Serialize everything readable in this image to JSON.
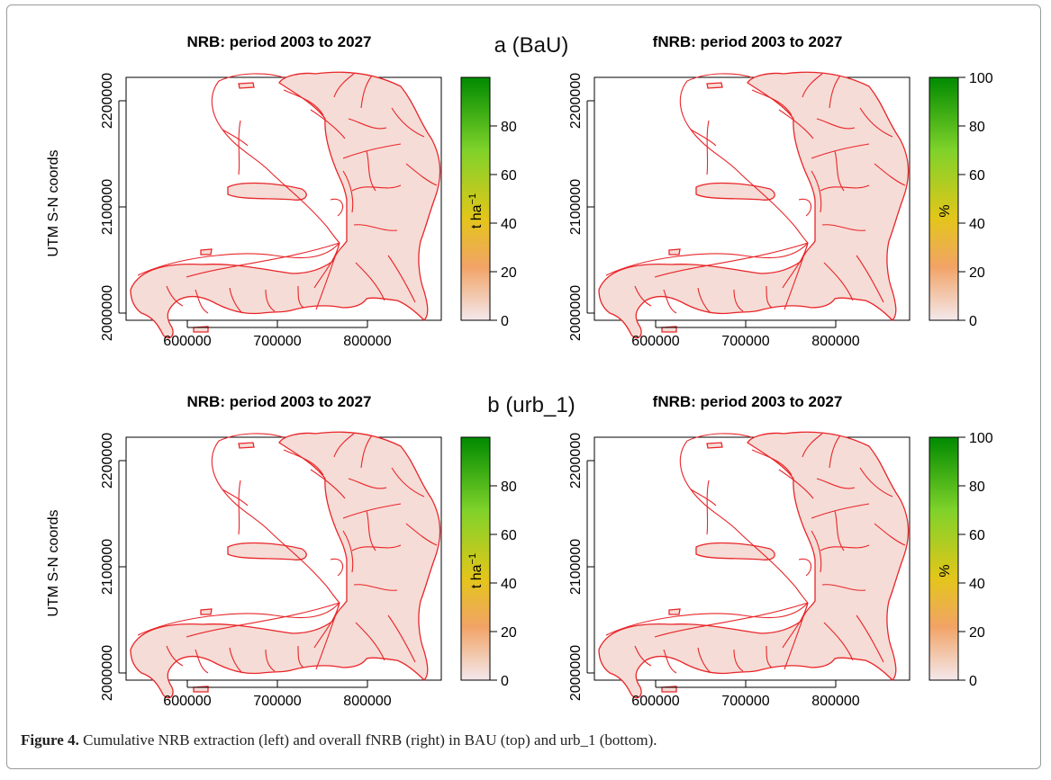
{
  "scenarios": [
    {
      "label": "a (BaU)"
    },
    {
      "label": "b (urb_1)"
    }
  ],
  "panels": [
    {
      "title": "NRB: period 2003 to 2027",
      "legend_unit": "t ha",
      "legend_superscript": "−1",
      "legend_ticks": [
        "0",
        "20",
        "40",
        "60",
        "80"
      ]
    },
    {
      "title": "fNRB: period 2003 to 2027",
      "legend_unit": "%",
      "legend_superscript": "",
      "legend_ticks": [
        "0",
        "20",
        "40",
        "60",
        "80",
        "100"
      ]
    }
  ],
  "axes": {
    "ylabel": "UTM S-N coords",
    "x_ticks": [
      "600000",
      "700000",
      "800000"
    ],
    "y_ticks": [
      "2000000",
      "2100000",
      "2200000"
    ]
  },
  "caption": {
    "label": "Figure 4.",
    "text": "Cumulative NRB extraction (left) and overall fNRB (right) in BAU (top) and urb_1 (bottom)."
  },
  "colors": {
    "boundary": "#e8262a",
    "land_fill": "#f6dcd6",
    "legend_top": "#008a00",
    "legend_mid_green": "#7fd22a",
    "legend_yellow": "#e3c61a",
    "legend_orange": "#f2a366",
    "legend_bottom": "#f3e8ec"
  }
}
